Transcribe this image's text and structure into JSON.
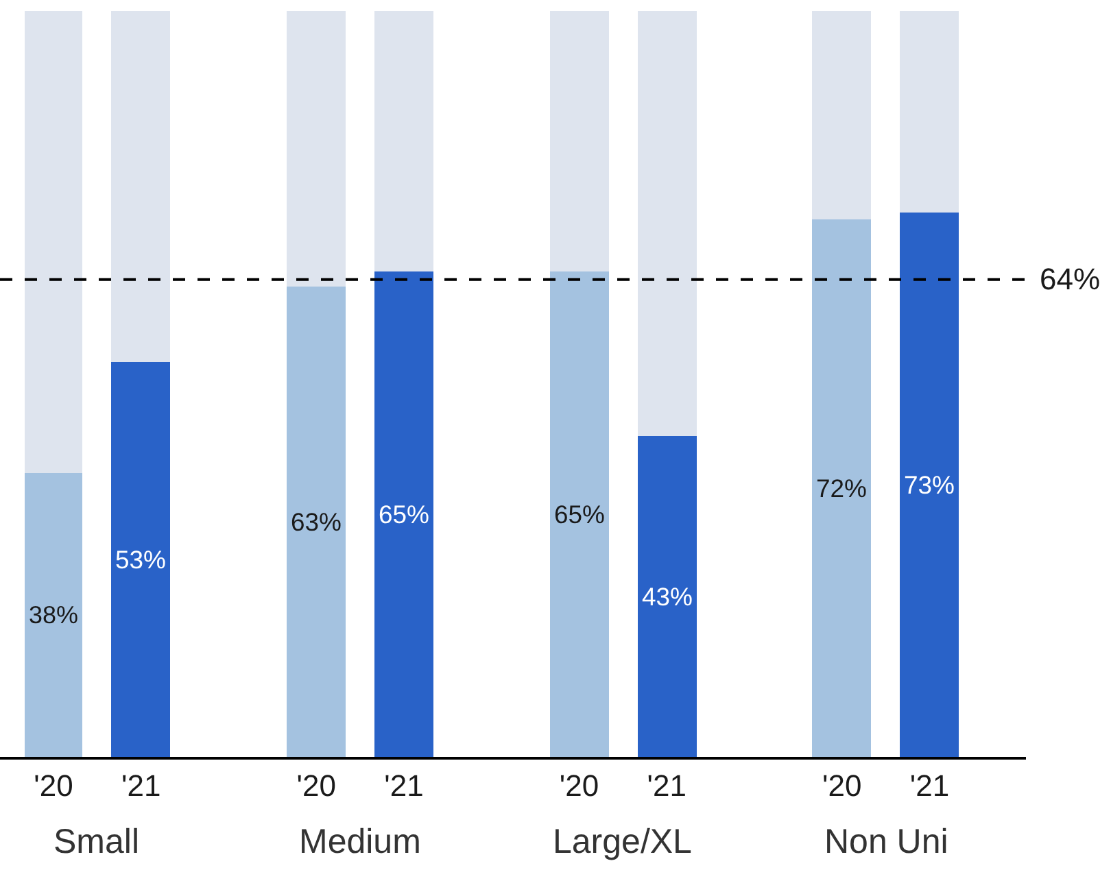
{
  "chart_data": {
    "type": "bar",
    "stacked": true,
    "categories": [
      "'20",
      "'21",
      "'20",
      "'21",
      "'20",
      "'21",
      "'20",
      "'21"
    ],
    "series": [
      {
        "colors": [
          "#a4c2e0",
          "#2962c8",
          "#a4c2e0",
          "#2962c8",
          "#a4c2e0",
          "#2962c8",
          "#a4c2e0",
          "#2962c8"
        ],
        "values": [
          38,
          53,
          63,
          65,
          65,
          43,
          72,
          73
        ],
        "value_labels": [
          "38%",
          "53%",
          "63%",
          "65%",
          "65%",
          "43%",
          "72%",
          "73%"
        ]
      },
      {
        "color": "#dee4ee",
        "values": [
          62,
          47,
          37,
          35,
          35,
          57,
          28,
          27
        ]
      }
    ],
    "ylim": [
      0,
      100
    ],
    "ref_lines": [
      {
        "axis": "y",
        "value": 64,
        "label": "64%",
        "color": "#000000",
        "line_style": "dashed"
      }
    ],
    "annotations": [
      "Small",
      "Medium",
      "Large/XL",
      "Non Uni"
    ]
  }
}
